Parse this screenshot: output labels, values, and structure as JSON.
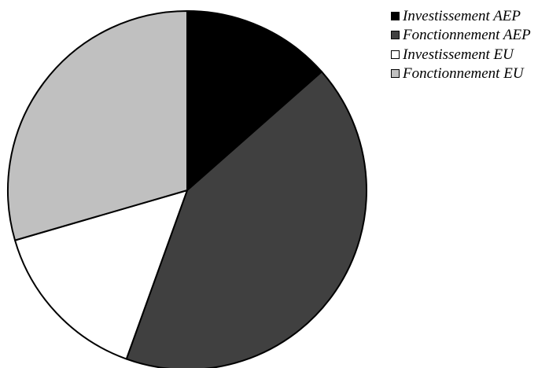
{
  "chart_data": {
    "type": "pie",
    "title": "",
    "legend_position": "top-right",
    "categories": [
      "Investissement AEP",
      "Fonctionnement AEP",
      "Investissement EU",
      "Fonctionnement EU"
    ],
    "values": [
      13.5,
      42.0,
      15.0,
      29.5
    ],
    "colors": [
      "#000000",
      "#404040",
      "#ffffff",
      "#c0c0c0"
    ],
    "start_angle_deg": 90,
    "direction": "clockwise"
  }
}
